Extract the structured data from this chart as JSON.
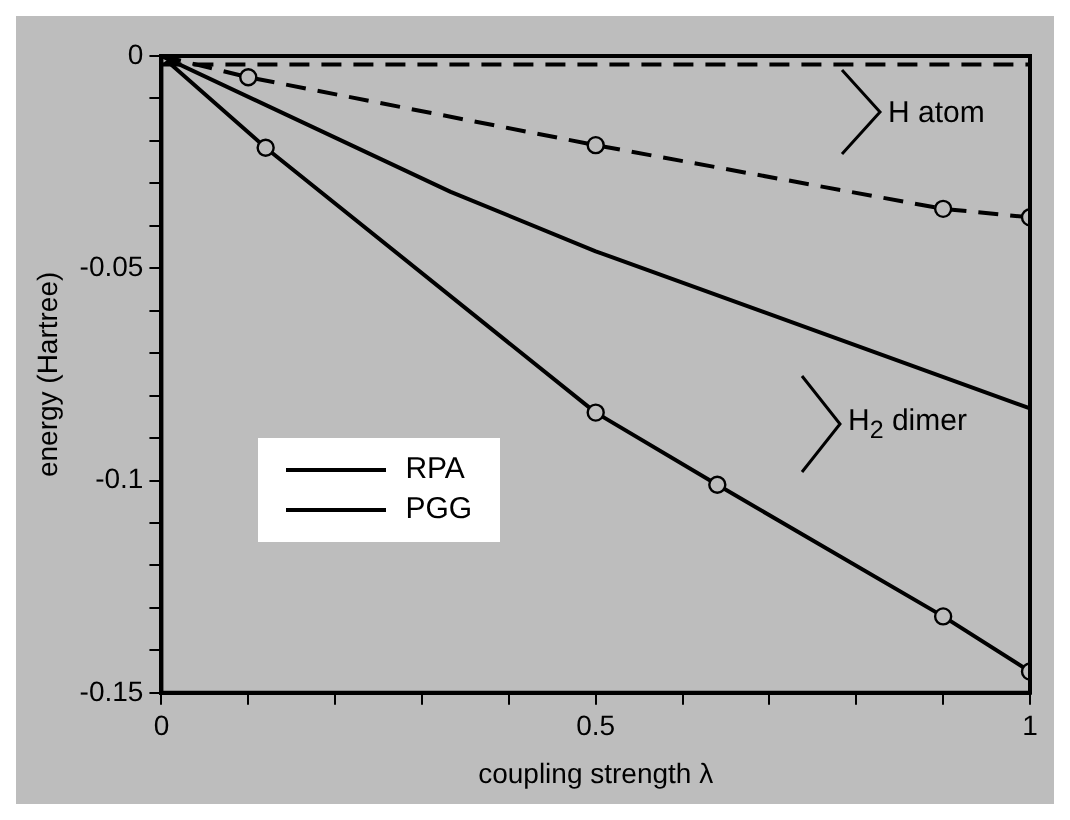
{
  "chart_data": {
    "type": "line",
    "xlabel": "coupling strength λ",
    "ylabel": "energy (Hartree)",
    "xlim": [
      0,
      1
    ],
    "ylim": [
      -0.15,
      0
    ],
    "xticks": [
      0,
      {
        "value": 0.1,
        "label": null
      },
      {
        "value": 0.2,
        "label": null
      },
      {
        "value": 0.3,
        "label": null
      },
      {
        "value": 0.4,
        "label": null
      },
      0.5,
      {
        "value": 0.6,
        "label": null
      },
      {
        "value": 0.7,
        "label": null
      },
      {
        "value": 0.8,
        "label": null
      },
      {
        "value": 0.9,
        "label": null
      },
      1
    ],
    "yticks": [
      -0.15,
      {
        "value": -0.14,
        "label": null
      },
      {
        "value": -0.13,
        "label": null
      },
      {
        "value": -0.12,
        "label": null
      },
      {
        "value": -0.11,
        "label": null
      },
      -0.1,
      {
        "value": -0.09,
        "label": null
      },
      {
        "value": -0.08,
        "label": null
      },
      {
        "value": -0.07,
        "label": null
      },
      {
        "value": -0.06,
        "label": null
      },
      -0.05,
      {
        "value": -0.04,
        "label": null
      },
      {
        "value": -0.03,
        "label": null
      },
      {
        "value": -0.02,
        "label": null
      },
      {
        "value": -0.01,
        "label": null
      },
      0
    ],
    "grid": false,
    "legend": "left",
    "series": [
      {
        "name": "RPA",
        "color": "#000000",
        "line_style": "solid",
        "marker": "none",
        "x": [
          0,
          0.333,
          0.5,
          1
        ],
        "values": [
          0,
          -0.032,
          -0.046,
          -0.083
        ]
      },
      {
        "name": "PGG",
        "color": "#000000",
        "line_style": "solid",
        "marker": "circle",
        "x": [
          0,
          0.12,
          0.5,
          0.64,
          0.9,
          1
        ],
        "values": [
          0,
          -0.0216,
          -0.084,
          -0.101,
          -0.132,
          -0.145
        ]
      },
      {
        "color": "#000000",
        "line_style": "dashed",
        "marker": "none",
        "x": [
          0,
          1
        ],
        "values": [
          -0.002,
          -0.002
        ]
      },
      {
        "color": "#000000",
        "line_style": "dashed",
        "marker": "circle",
        "x": [
          0,
          0.1,
          0.5,
          0.9,
          1
        ],
        "values": [
          0,
          -0.005,
          -0.021,
          -0.036,
          -0.038
        ]
      }
    ],
    "annotations": [
      "H atom",
      "H$_{2}$ dimer"
    ]
  }
}
